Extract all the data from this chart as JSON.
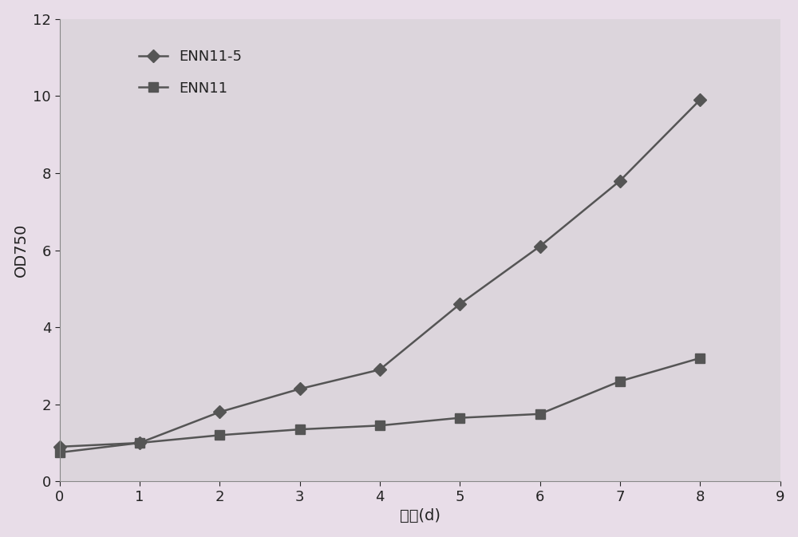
{
  "x": [
    0,
    1,
    2,
    3,
    4,
    5,
    6,
    7,
    8
  ],
  "enn11_5_y": [
    0.9,
    1.0,
    1.8,
    2.4,
    2.9,
    4.6,
    6.1,
    7.8,
    9.9
  ],
  "enn11_y": [
    0.75,
    1.0,
    1.2,
    1.35,
    1.45,
    1.65,
    1.75,
    2.6,
    3.2
  ],
  "enn11_5_label": "ENN11-5",
  "enn11_label": "ENN11",
  "xlabel": "时间(d)",
  "ylabel": "OD750",
  "xlim": [
    0,
    9
  ],
  "ylim": [
    0,
    12
  ],
  "xticks": [
    0,
    1,
    2,
    3,
    4,
    5,
    6,
    7,
    8,
    9
  ],
  "yticks": [
    0,
    2,
    4,
    6,
    8,
    10,
    12
  ],
  "line_color": "#555555",
  "marker_diamond": "D",
  "marker_square": "s",
  "marker_size": 8,
  "line_width": 1.8,
  "background_color": "#e8dde8",
  "plot_bg_color": "#dcd5dc",
  "label_fontsize": 14,
  "tick_fontsize": 13,
  "legend_fontsize": 13
}
